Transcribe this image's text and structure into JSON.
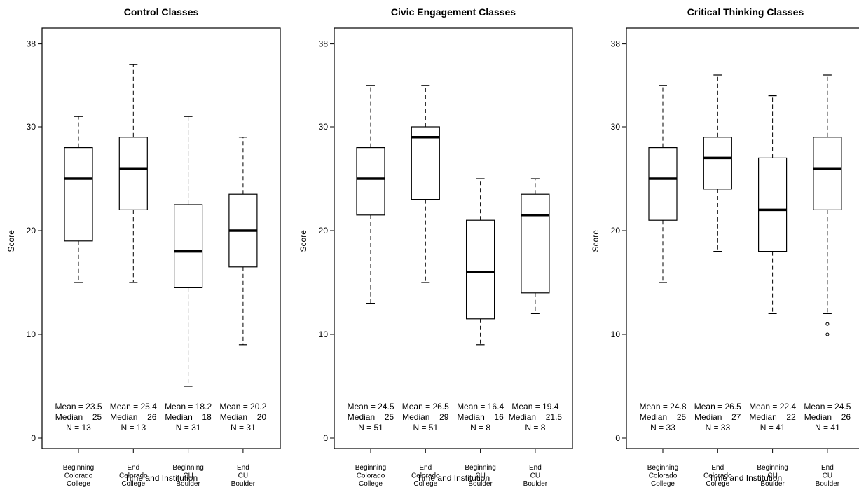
{
  "chart_data": [
    {
      "type": "box",
      "title": "Control Classes",
      "xlabel": "Time and Institution",
      "ylabel": "Score",
      "ylim": [
        0,
        38
      ],
      "yticks": [
        0,
        10,
        20,
        30,
        38
      ],
      "categories": [
        {
          "label": [
            "Beginning",
            "Colorado",
            "College"
          ],
          "min": 15,
          "q1": 19,
          "median": 25,
          "q3": 28,
          "max": 31,
          "outliers": [],
          "stats": [
            "Mean = 23.5",
            "Median = 25",
            "N = 13"
          ]
        },
        {
          "label": [
            "End",
            "Colorado",
            "College"
          ],
          "min": 15,
          "q1": 22,
          "median": 26,
          "q3": 29,
          "max": 36,
          "outliers": [],
          "stats": [
            "Mean = 25.4",
            "Median = 26",
            "N = 13"
          ]
        },
        {
          "label": [
            "Beginning",
            "CU",
            "Boulder"
          ],
          "min": 5,
          "q1": 14.5,
          "median": 18,
          "q3": 22.5,
          "max": 31,
          "outliers": [],
          "stats": [
            "Mean = 18.2",
            "Median = 18",
            "N = 31"
          ]
        },
        {
          "label": [
            "End",
            "CU",
            "Boulder"
          ],
          "min": 9,
          "q1": 16.5,
          "median": 20,
          "q3": 23.5,
          "max": 29,
          "outliers": [],
          "stats": [
            "Mean = 20.2",
            "Median = 20",
            "N = 31"
          ]
        }
      ]
    },
    {
      "type": "box",
      "title": "Civic Engagement Classes",
      "xlabel": "Time and Institution",
      "ylabel": "Score",
      "ylim": [
        0,
        38
      ],
      "yticks": [
        0,
        10,
        20,
        30,
        38
      ],
      "categories": [
        {
          "label": [
            "Beginning",
            "Colorado",
            "College"
          ],
          "min": 13,
          "q1": 21.5,
          "median": 25,
          "q3": 28,
          "max": 34,
          "outliers": [],
          "stats": [
            "Mean = 24.5",
            "Median = 25",
            "N = 51"
          ]
        },
        {
          "label": [
            "End",
            "Colorado",
            "College"
          ],
          "min": 15,
          "q1": 23,
          "median": 29,
          "q3": 30,
          "max": 34,
          "outliers": [],
          "stats": [
            "Mean = 26.5",
            "Median = 29",
            "N = 51"
          ]
        },
        {
          "label": [
            "Beginning",
            "CU",
            "Boulder"
          ],
          "min": 9,
          "q1": 11.5,
          "median": 16,
          "q3": 21,
          "max": 25,
          "outliers": [],
          "stats": [
            "Mean = 16.4",
            "Median = 16",
            "N = 8"
          ]
        },
        {
          "label": [
            "End",
            "CU",
            "Boulder"
          ],
          "min": 12,
          "q1": 14,
          "median": 21.5,
          "q3": 23.5,
          "max": 25,
          "outliers": [],
          "stats": [
            "Mean = 19.4",
            "Median = 21.5",
            "N = 8"
          ]
        }
      ]
    },
    {
      "type": "box",
      "title": "Critical Thinking Classes",
      "xlabel": "Time and Institution",
      "ylabel": "Score",
      "ylim": [
        0,
        38
      ],
      "yticks": [
        0,
        10,
        20,
        30,
        38
      ],
      "categories": [
        {
          "label": [
            "Beginning",
            "Colorado",
            "College"
          ],
          "min": 15,
          "q1": 21,
          "median": 25,
          "q3": 28,
          "max": 34,
          "outliers": [],
          "stats": [
            "Mean = 24.8",
            "Median = 25",
            "N = 33"
          ]
        },
        {
          "label": [
            "End",
            "Colorado",
            "College"
          ],
          "min": 18,
          "q1": 24,
          "median": 27,
          "q3": 29,
          "max": 35,
          "outliers": [],
          "stats": [
            "Mean = 26.5",
            "Median = 27",
            "N = 33"
          ]
        },
        {
          "label": [
            "Beginning",
            "CU",
            "Boulder"
          ],
          "min": 12,
          "q1": 18,
          "median": 22,
          "q3": 27,
          "max": 33,
          "outliers": [],
          "stats": [
            "Mean = 22.4",
            "Median = 22",
            "N = 41"
          ]
        },
        {
          "label": [
            "End",
            "CU",
            "Boulder"
          ],
          "min": 12,
          "q1": 22,
          "median": 26,
          "q3": 29,
          "max": 35,
          "outliers": [
            11,
            10
          ],
          "stats": [
            "Mean = 24.5",
            "Median = 26",
            "N = 41"
          ]
        }
      ]
    }
  ]
}
